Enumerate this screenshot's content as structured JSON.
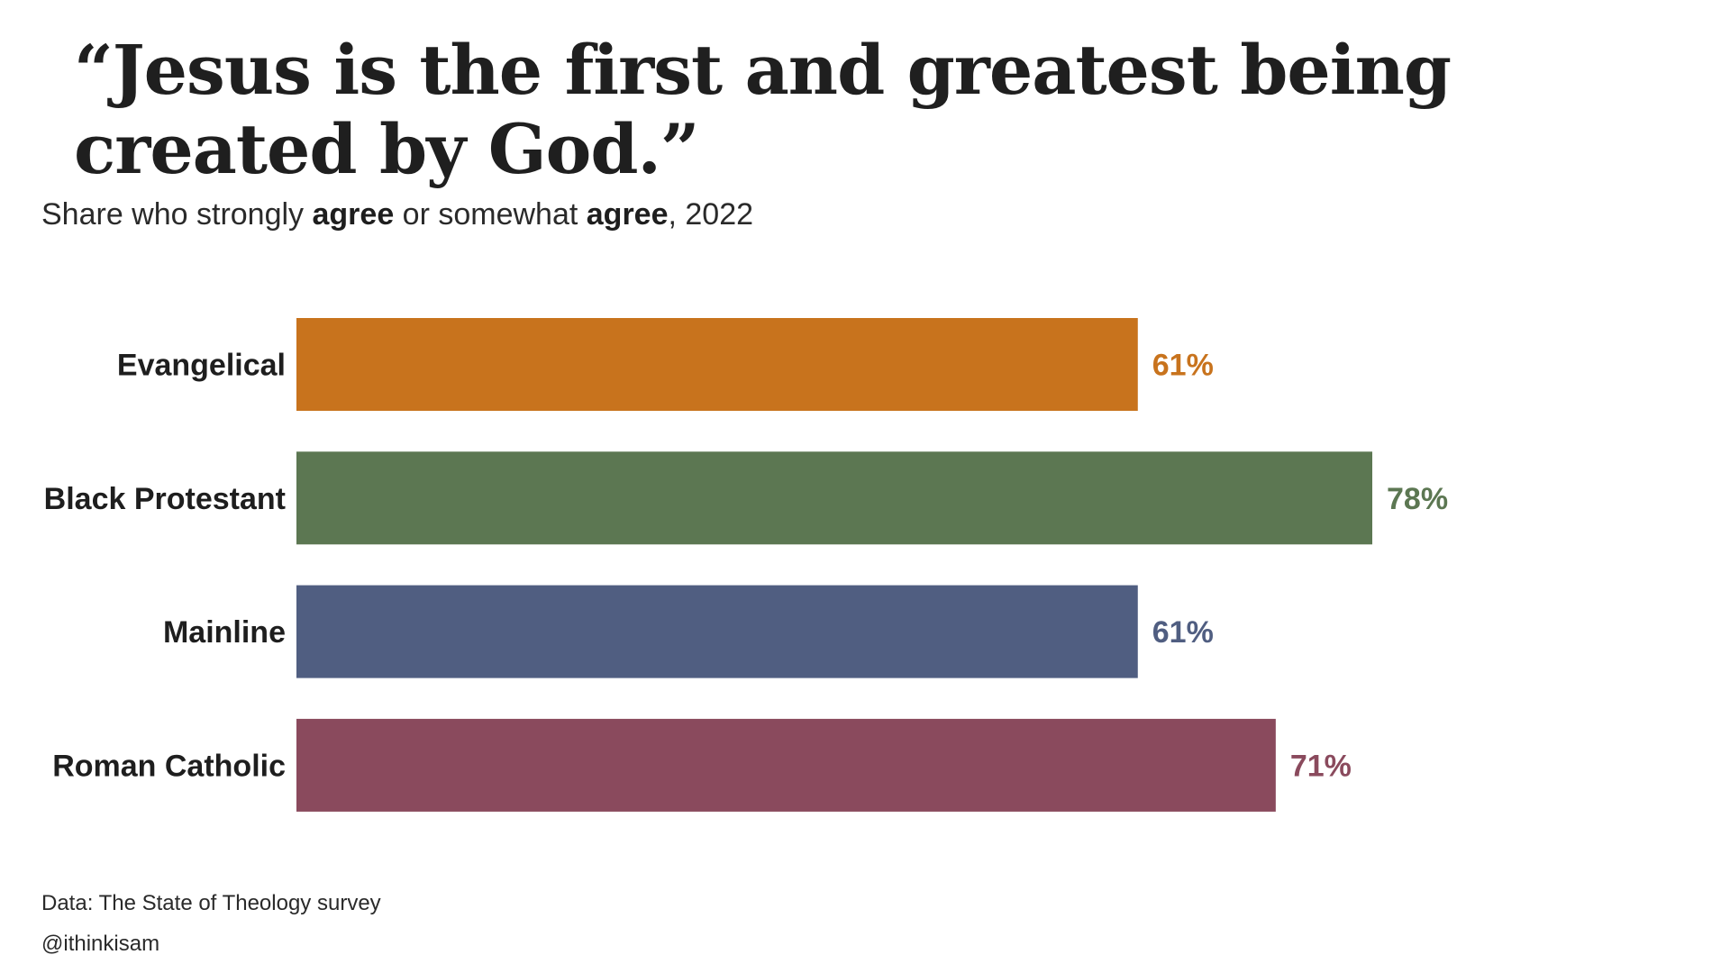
{
  "title": "“Jesus is the first and greatest being created by God.”",
  "subtitle": {
    "part1": "Share who strongly ",
    "bold1": "agree",
    "part2": " or somewhat ",
    "bold2": "agree",
    "part3": ", 2022"
  },
  "footer": {
    "source": "Data: The State of Theology survey",
    "credit": "@ithinkisam"
  },
  "chart_data": {
    "type": "bar",
    "orientation": "horizontal",
    "categories": [
      "Evangelical",
      "Black Protestant",
      "Mainline",
      "Roman Catholic"
    ],
    "values": [
      61,
      78,
      61,
      71
    ],
    "value_labels": [
      "61%",
      "78%",
      "61%",
      "71%"
    ],
    "colors": [
      "#c8731d",
      "#5c7752",
      "#505e81",
      "#8a4a5d"
    ],
    "xlim": [
      0,
      100
    ],
    "grid": false,
    "legend": "none"
  }
}
